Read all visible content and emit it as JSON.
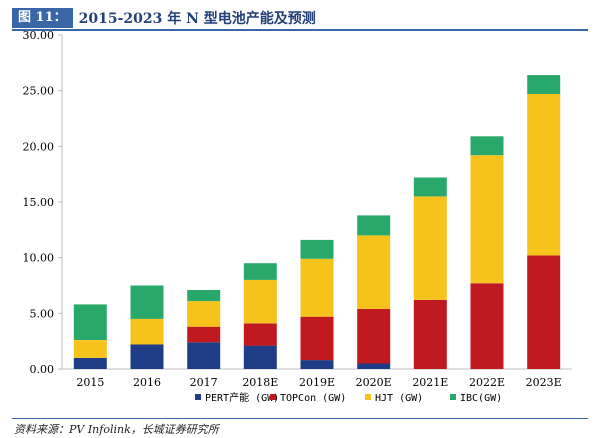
{
  "figure": {
    "badge": "图 11：",
    "title": "2015-2023 年 N 型电池产能及预测",
    "source": "资料来源：PV Infolink，长城证券研究所"
  },
  "colors": {
    "PERT": "#1f3d87",
    "TOPCon": "#c0191f",
    "HJT": "#f6c21c",
    "IBC": "#29a86b",
    "axis": "#bfbfbf"
  },
  "chart_data": {
    "type": "bar",
    "stacked": true,
    "title": "2015-2023 年 N 型电池产能及预测",
    "xlabel": "",
    "ylabel": "",
    "ylim": [
      0,
      30
    ],
    "yticks": [
      "0.00",
      "5.00",
      "10.00",
      "15.00",
      "20.00",
      "25.00",
      "30.00"
    ],
    "categories": [
      "2015",
      "2016",
      "2017",
      "2018E",
      "2019E",
      "2020E",
      "2021E",
      "2022E",
      "2023E"
    ],
    "series": [
      {
        "key": "PERT",
        "name": "PERT产能 (GW)",
        "values": [
          1.0,
          2.2,
          2.4,
          2.1,
          0.8,
          0.5,
          0.0,
          0.0,
          0.0
        ]
      },
      {
        "key": "TOPCon",
        "name": "TOPCon (GW)",
        "values": [
          0.0,
          0.0,
          1.4,
          2.0,
          3.9,
          4.9,
          6.2,
          7.7,
          10.2
        ]
      },
      {
        "key": "HJT",
        "name": "HJT (GW)",
        "values": [
          1.6,
          2.3,
          2.3,
          3.9,
          5.2,
          6.6,
          9.3,
          11.5,
          14.5
        ]
      },
      {
        "key": "IBC",
        "name": "IBC(GW)",
        "values": [
          3.2,
          3.0,
          1.0,
          1.5,
          1.7,
          1.8,
          1.7,
          1.7,
          1.7
        ]
      }
    ],
    "legend_position": "bottom"
  }
}
